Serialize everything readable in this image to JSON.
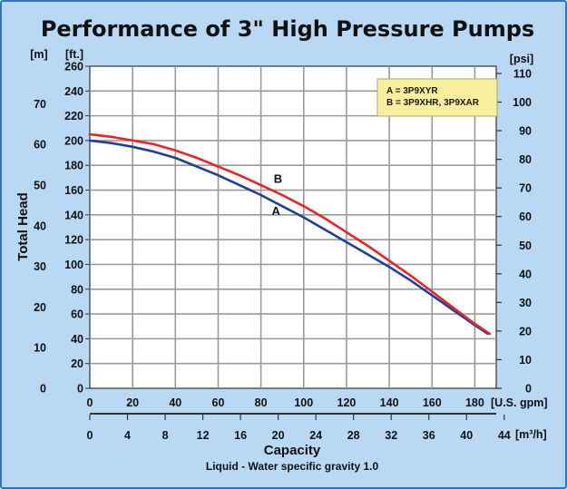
{
  "chart_data": {
    "type": "line",
    "title": "Performance of 3\" High Pressure Pumps",
    "xlabel": "Capacity",
    "ylabel": "Total Head",
    "note": "Liquid - Water specific gravity 1.0",
    "x_axis_primary": {
      "unit": "[U.S. gpm]",
      "range": [
        0,
        190
      ],
      "ticks": [
        0,
        20,
        40,
        60,
        80,
        100,
        120,
        140,
        160,
        180
      ]
    },
    "x_axis_secondary": {
      "unit": "[m³/h]",
      "ticks": [
        0,
        4,
        8,
        12,
        16,
        20,
        24,
        28,
        32,
        36,
        40,
        44
      ],
      "gpm_per_unit": 4.4029
    },
    "y_axis_ft": {
      "unit": "[ft.]",
      "range": [
        0,
        260
      ],
      "ticks": [
        0,
        20,
        40,
        60,
        80,
        100,
        120,
        140,
        160,
        180,
        200,
        220,
        240,
        260
      ]
    },
    "y_axis_m": {
      "unit": "[m]",
      "ticks": [
        0,
        10,
        20,
        30,
        40,
        50,
        60,
        70
      ],
      "ft_per_unit": 3.2808
    },
    "y_axis_psi": {
      "unit": "[psi]",
      "ticks": [
        0,
        10,
        20,
        30,
        40,
        50,
        60,
        70,
        80,
        90,
        100,
        110
      ],
      "ft_per_unit": 2.3107
    },
    "grid": true,
    "legend": {
      "position": "top-right",
      "entries": [
        "A = 3P9XYR",
        "B = 3P9XHR, 3P9XAR"
      ]
    },
    "series": [
      {
        "name": "A",
        "color": "#1f3f9c",
        "x": [
          0,
          10,
          20,
          30,
          40,
          50,
          60,
          70,
          80,
          90,
          100,
          110,
          120,
          130,
          140,
          150,
          160,
          170,
          180,
          186
        ],
        "y": [
          200,
          198,
          195,
          191,
          186,
          179,
          172,
          164,
          156,
          147,
          138,
          128,
          118,
          108,
          98,
          87,
          75,
          63,
          51,
          44
        ]
      },
      {
        "name": "B",
        "color": "#e8242a",
        "x": [
          0,
          10,
          20,
          30,
          40,
          50,
          60,
          70,
          80,
          90,
          100,
          110,
          120,
          130,
          140,
          150,
          160,
          170,
          180,
          187
        ],
        "y": [
          205,
          203,
          200,
          197,
          192,
          186,
          179,
          172,
          164,
          156,
          147,
          137,
          126,
          115,
          103,
          91,
          78,
          65,
          52,
          44
        ]
      }
    ]
  }
}
